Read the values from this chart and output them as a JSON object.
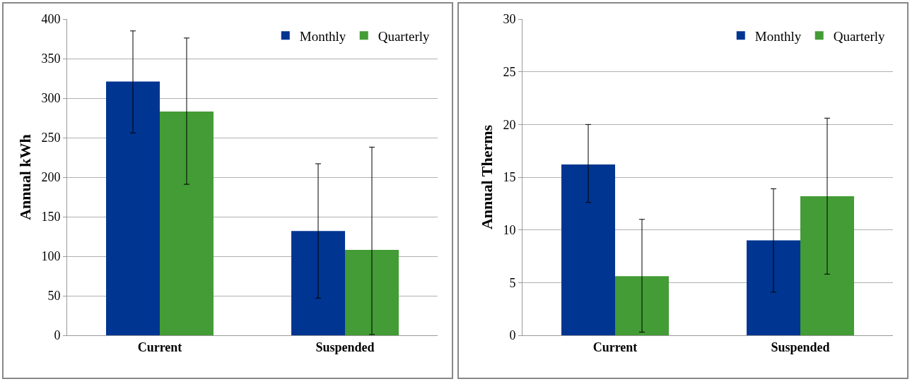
{
  "chart_data": [
    {
      "type": "bar",
      "ylabel": "Annual kWh",
      "categories": [
        "Current",
        "Suspended"
      ],
      "series": [
        {
          "name": "Monthly",
          "color": "#003591",
          "values": [
            321,
            132
          ],
          "errors": [
            [
              256,
              385
            ],
            [
              47,
              217
            ]
          ]
        },
        {
          "name": "Quarterly",
          "color": "#439c35",
          "values": [
            283,
            108
          ],
          "errors": [
            [
              191,
              376
            ],
            [
              1,
              238
            ]
          ]
        }
      ],
      "ylim": [
        0,
        400
      ],
      "yticks": [
        0,
        50,
        100,
        150,
        200,
        250,
        300,
        350,
        400
      ],
      "grid": "y",
      "legend": "top right"
    },
    {
      "type": "bar",
      "ylabel": "Annual Therms",
      "categories": [
        "Current",
        "Suspended"
      ],
      "series": [
        {
          "name": "Monthly",
          "color": "#003591",
          "values": [
            16.2,
            9.0
          ],
          "errors": [
            [
              12.6,
              20.0
            ],
            [
              4.1,
              13.9
            ]
          ]
        },
        {
          "name": "Quarterly",
          "color": "#439c35",
          "values": [
            5.6,
            13.2
          ],
          "errors": [
            [
              0.3,
              11.0
            ],
            [
              5.8,
              20.6
            ]
          ]
        }
      ],
      "ylim": [
        0,
        30
      ],
      "yticks": [
        0,
        5,
        10,
        15,
        20,
        25,
        30
      ],
      "grid": "y",
      "legend": "top right"
    }
  ]
}
